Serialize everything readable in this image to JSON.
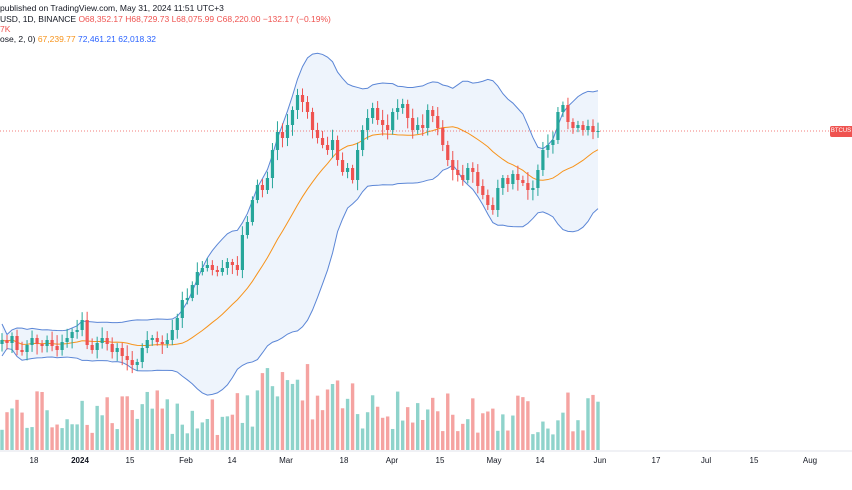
{
  "header": {
    "published": "published on TradingView.com, May 31, 2024 11:51 UTC+3",
    "symbol": "USD",
    "exchange": "1D, BINANCE",
    "open": "O68,352.17",
    "high": "H68,729.73",
    "low": "L68,075.99",
    "close": "C68,220.00",
    "change": "−132.17 (−0.19%)",
    "volume_tag": "7K",
    "indicator_name": "ose, 2, 0)",
    "ind_basis": "67,239.77",
    "ind_upper": "72,461.21",
    "ind_lower": "62,018.32"
  },
  "price_tag": {
    "label": "BTCUS"
  },
  "colors": {
    "up": "#26a69a",
    "down": "#ef5350",
    "vol_up": "#8fd3cb",
    "vol_down": "#f5a3a1",
    "basis": "#f7931a",
    "band": "#5b86d6",
    "band_fill": "#eaf1fb",
    "price_line": "#ef5350"
  },
  "chart_data": {
    "type": "candlestick",
    "symbol": "BTCUSD",
    "interval": "1D",
    "x_tick_labels": [
      "18",
      "2024",
      "15",
      "Feb",
      "14",
      "Mar",
      "18",
      "Apr",
      "15",
      "May",
      "14",
      "Jun",
      "17",
      "Jul",
      "15",
      "Aug"
    ],
    "last_price": 68220.0,
    "y_range_approx": [
      39000,
      75000
    ],
    "ohlc_source_note": "daily candles, values estimated from the chart",
    "candles": [],
    "bollinger": {
      "period": 20,
      "stddev": 2,
      "basis_last": 67239.77,
      "upper_last": 72461.21,
      "lower_last": 62018.32
    }
  }
}
